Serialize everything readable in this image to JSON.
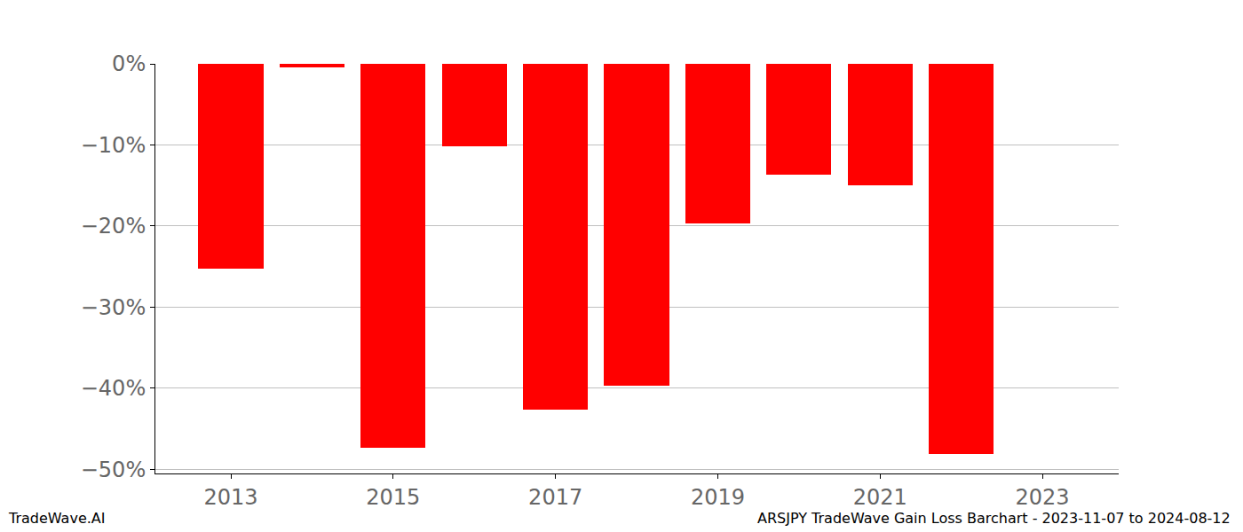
{
  "chart_data": {
    "type": "bar",
    "x": [
      2013,
      2014,
      2015,
      2016,
      2017,
      2018,
      2019,
      2020,
      2021,
      2022
    ],
    "values": [
      -25.2,
      -0.4,
      -47.3,
      -10.2,
      -42.6,
      -39.7,
      -19.7,
      -13.7,
      -15.0,
      -48.1
    ],
    "color": "#ff0000",
    "xlim": [
      2012.07,
      2023.94
    ],
    "xticks": [
      2013,
      2015,
      2017,
      2019,
      2021,
      2023
    ],
    "ylim": [
      -50.5,
      0
    ],
    "yticks": [
      {
        "value": 0,
        "label": "0%"
      },
      {
        "value": -10,
        "label": "−10%"
      },
      {
        "value": -20,
        "label": "−20%"
      },
      {
        "value": -30,
        "label": "−30%"
      },
      {
        "value": -40,
        "label": "−40%"
      },
      {
        "value": -50,
        "label": "−50%"
      }
    ],
    "grid": true,
    "annotations": [
      "TradeWave.AI",
      "ARSJPY TradeWave Gain Loss Barchart - 2023-11-07 to 2024-08-12"
    ]
  }
}
